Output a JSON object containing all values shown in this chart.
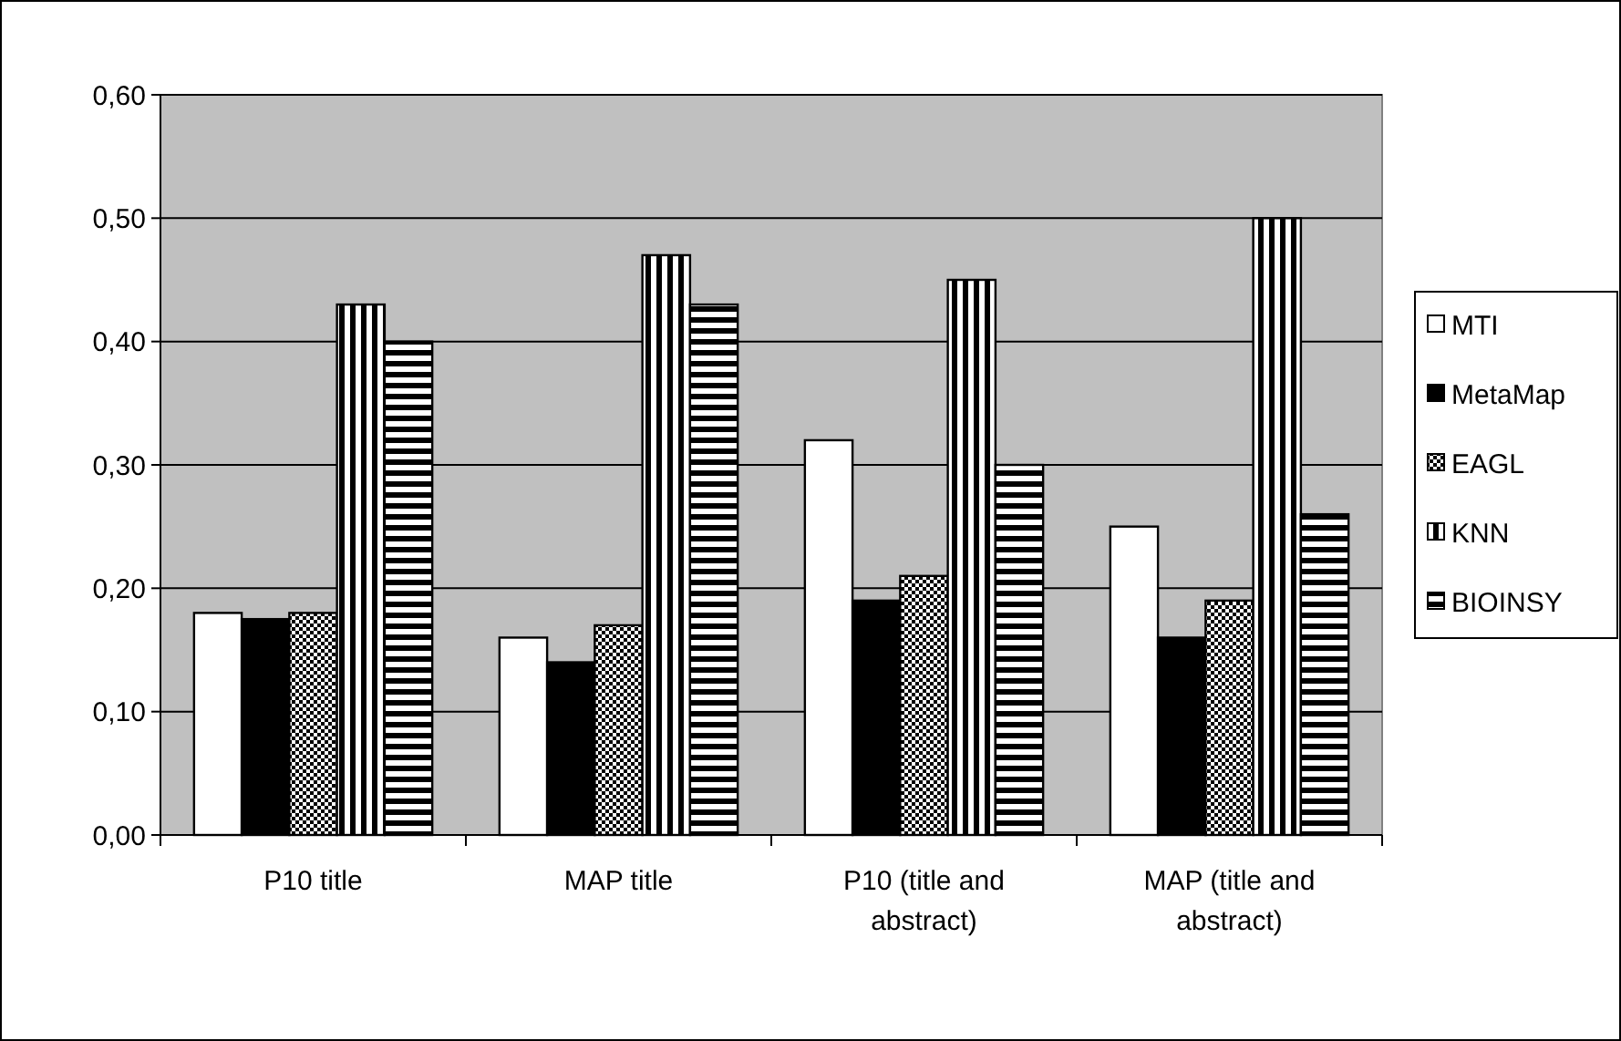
{
  "chart_data": {
    "type": "bar",
    "categories": [
      "P10 title",
      "MAP title",
      "P10 (title and abstract)",
      "MAP (title and abstract)"
    ],
    "series": [
      {
        "name": "MTI",
        "color": "#ffffff",
        "values": [
          0.18,
          0.16,
          0.32,
          0.25
        ]
      },
      {
        "name": "MetaMap",
        "color": "#000000",
        "values": [
          0.175,
          0.14,
          0.19,
          0.16
        ]
      },
      {
        "name": "EAGL",
        "color": "#000000",
        "values": [
          0.18,
          0.17,
          0.21,
          0.19
        ]
      },
      {
        "name": "KNN",
        "color": "#000000",
        "values": [
          0.43,
          0.47,
          0.45,
          0.5
        ]
      },
      {
        "name": "BIOINSY",
        "color": "#000000",
        "values": [
          0.4,
          0.43,
          0.3,
          0.26
        ]
      }
    ],
    "ylim": [
      0,
      0.6
    ],
    "yticks": [
      {
        "value": 0,
        "label": "0,00"
      },
      {
        "value": 0.1,
        "label": "0,10"
      },
      {
        "value": 0.2,
        "label": "0,20"
      },
      {
        "value": 0.3,
        "label": "0,30"
      },
      {
        "value": 0.4,
        "label": "0,40"
      },
      {
        "value": 0.5,
        "label": "0,50"
      },
      {
        "value": 0.6,
        "label": "0,60"
      }
    ],
    "grid": "y",
    "legend": "right"
  }
}
